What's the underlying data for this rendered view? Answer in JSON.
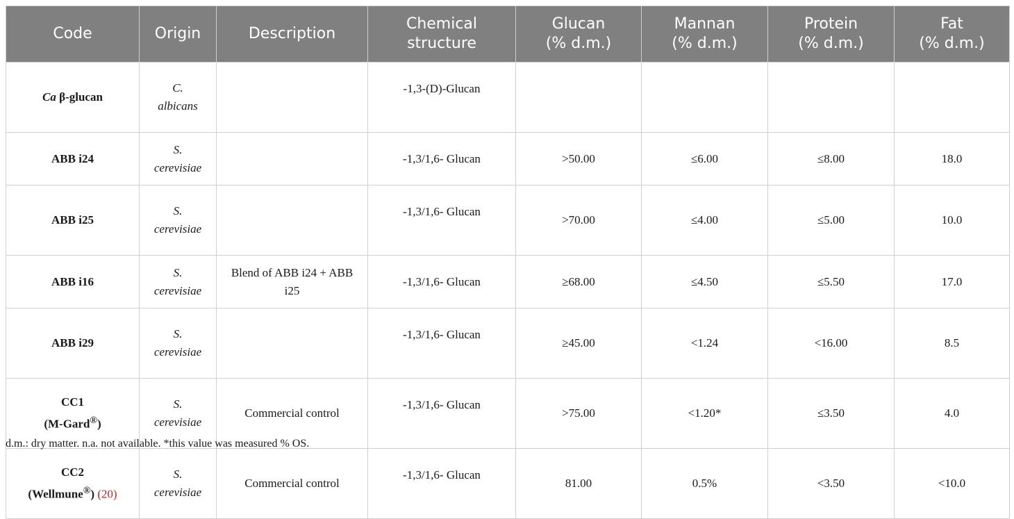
{
  "table": {
    "headers": {
      "code": "Code",
      "origin": "Origin",
      "description": "Description",
      "chemical": [
        "Chemical",
        "structure"
      ],
      "glucan": [
        "Glucan",
        "(% d.m.)"
      ],
      "mannan": [
        "Mannan",
        "(% d.m.)"
      ],
      "protein": [
        "Protein",
        "(% d.m.)"
      ],
      "fat": [
        "Fat",
        "(% d.m.)"
      ]
    },
    "rows": [
      {
        "code_prefix": "Ca",
        "code": " β-glucan",
        "origin": [
          "C.",
          "albicans"
        ],
        "description": "",
        "chemical": "-1,3-(D)-Glucan",
        "glucan": "",
        "mannan": "",
        "protein": "",
        "fat": ""
      },
      {
        "code": "ABB i24",
        "origin": [
          "S.",
          "cerevisiae"
        ],
        "description": "",
        "chemical": "-1,3/1,6- Glucan",
        "glucan": ">50.00",
        "mannan": "≤6.00",
        "protein": "≤8.00",
        "fat": "18.0"
      },
      {
        "code": "ABB i25",
        "origin": [
          "S.",
          "cerevisiae"
        ],
        "description": "",
        "chemical": "-1,3/1,6- Glucan",
        "glucan": ">70.00",
        "mannan": "≤4.00",
        "protein": "≤5.00",
        "fat": "10.0"
      },
      {
        "code": "ABB i16",
        "origin": [
          "S.",
          "cerevisiae"
        ],
        "description": "Blend of ABB i24 + ABB i25",
        "chemical": "-1,3/1,6- Glucan",
        "glucan": "≥68.00",
        "mannan": "≤4.50",
        "protein": "≤5.50",
        "fat": "17.0"
      },
      {
        "code": "ABB i29",
        "origin": [
          "S.",
          "cerevisiae"
        ],
        "description": "",
        "chemical": "-1,3/1,6- Glucan",
        "glucan": "≥45.00",
        "mannan": "<1.24",
        "protein": "<16.00",
        "fat": "8.5"
      },
      {
        "code": "CC1",
        "code_sub": "(M-Gard",
        "code_sup": "®",
        "code_tail": ")",
        "origin": [
          "S.",
          "cerevisiae"
        ],
        "description": "Commercial control",
        "chemical": "-1,3/1,6- Glucan",
        "glucan": ">75.00",
        "mannan": "<1.20*",
        "protein": "≤3.50",
        "fat": "4.0"
      },
      {
        "code": "CC2",
        "code_sub": "(Wellmune",
        "code_sup": "®",
        "code_tail": ")",
        "code_ref": "(20)",
        "origin": [
          "S.",
          "cerevisiae"
        ],
        "description": "Commercial control",
        "chemical": "-1,3/1,6- Glucan",
        "glucan": "81.00",
        "mannan": "0.5%",
        "protein": "<3.50",
        "fat": "<10.0"
      }
    ]
  },
  "footnote": "d.m.: dry matter. n.a. not available. *this value was measured % OS."
}
